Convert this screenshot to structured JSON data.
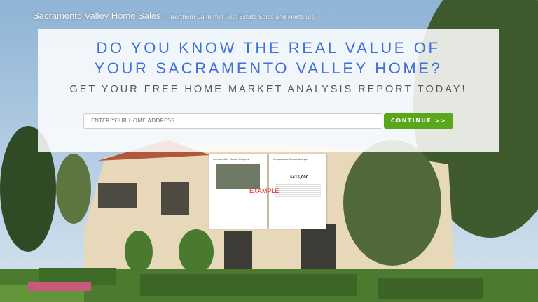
{
  "header": {
    "site_title": "Sacramento Valley Home Sales",
    "tagline": "— Northern California Real Estate Sales and Mortgage"
  },
  "hero": {
    "headline": "DO YOU KNOW THE REAL VALUE OF YOUR SACRAMENTO VALLEY HOME?",
    "subheadline": "GET YOUR FREE HOME MARKET ANALYSIS REPORT TODAY!",
    "input_placeholder": "ENTER YOUR HOME ADDRESS",
    "button": "CONTINUE >>"
  },
  "example": {
    "label": "EXAMPLE",
    "reports": [
      {
        "title": "Comparative Market Analysis"
      },
      {
        "title": "Comparative Market Analysis",
        "price": "$415,000"
      }
    ]
  }
}
